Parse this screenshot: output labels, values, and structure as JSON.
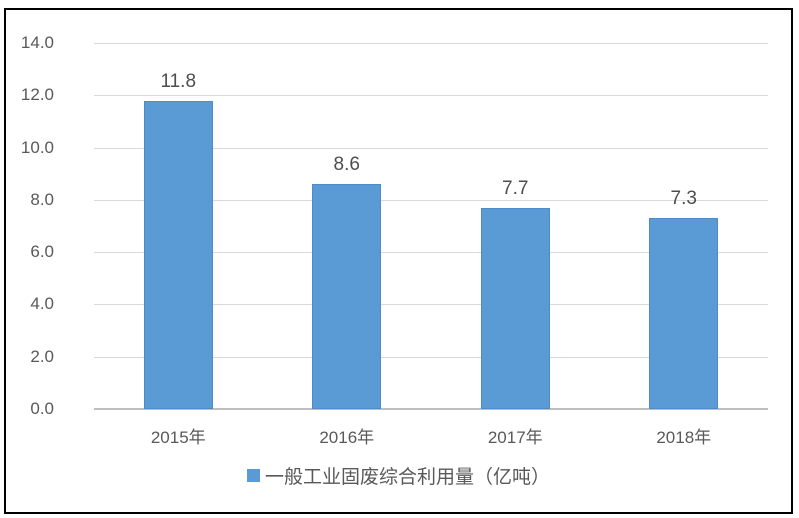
{
  "chart_data": {
    "type": "bar",
    "title": "",
    "categories": [
      "2015年",
      "2016年",
      "2017年",
      "2018年"
    ],
    "values": [
      11.8,
      8.6,
      7.7,
      7.3
    ],
    "data_labels": [
      "11.8",
      "8.6",
      "7.7",
      "7.3"
    ],
    "xlabel": "",
    "ylabel": "",
    "ylim": [
      0,
      14
    ],
    "y_step": 2,
    "y_tick_labels": [
      "0.0",
      "2.0",
      "4.0",
      "6.0",
      "8.0",
      "10.0",
      "12.0",
      "14.0"
    ],
    "grid": true,
    "legend_position": "bottom",
    "legend": [
      {
        "label": "一般工业固废综合利用量（亿吨）",
        "color": "#5B9BD5"
      }
    ],
    "colors": {
      "bar_fill": "#5B9BD5",
      "bar_border": "#4E8BC8",
      "gridline": "#D9D9D9",
      "axis_line": "#BFBFBF",
      "tick_text": "#595959",
      "data_label_text": "#4D4D4D",
      "frame_border": "#000000",
      "background": "#FFFFFF"
    }
  }
}
